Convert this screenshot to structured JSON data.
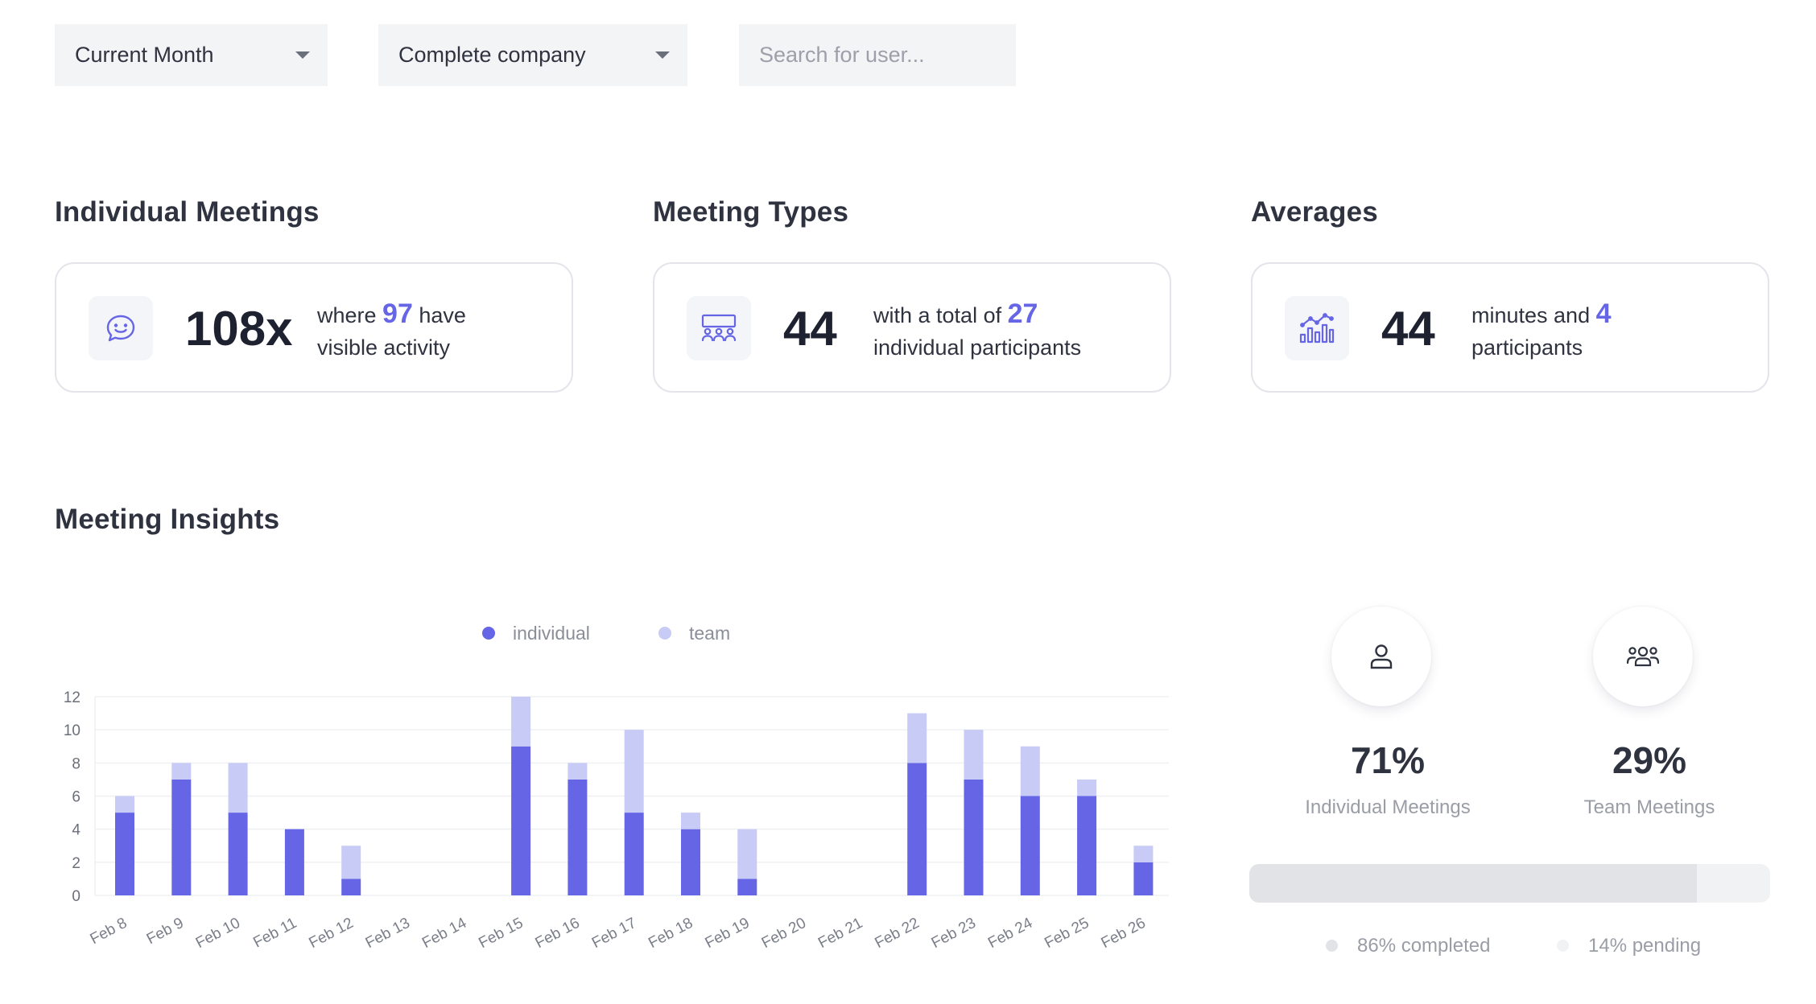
{
  "filters": {
    "period": "Current Month",
    "scope": "Complete company",
    "search_placeholder": "Search for user..."
  },
  "sections": {
    "individual_meetings": {
      "title": "Individual Meetings",
      "icon": "chat-smile-icon",
      "big": "108x",
      "line1_pre": "where ",
      "line1_highlight": "97",
      "line1_post": " have",
      "line2": "visible activity"
    },
    "meeting_types": {
      "title": "Meeting Types",
      "icon": "group-presentation-icon",
      "big": "44",
      "line1_pre": "with a total of ",
      "line1_highlight": "27",
      "line2": "individual participants"
    },
    "averages": {
      "title": "Averages",
      "icon": "chart-analytics-icon",
      "big": "44",
      "line1_pre": "minutes and ",
      "line1_highlight": "4",
      "line2": "participants"
    }
  },
  "insights": {
    "title": "Meeting Insights"
  },
  "colors": {
    "accent": "#6565e6",
    "team": "#c8cbf5",
    "text": "#2f3340"
  },
  "chart_data": {
    "type": "bar",
    "stacked": true,
    "categories": [
      "Feb 8",
      "Feb 9",
      "Feb 10",
      "Feb 11",
      "Feb 12",
      "Feb 13",
      "Feb 14",
      "Feb 15",
      "Feb 16",
      "Feb 17",
      "Feb 18",
      "Feb 19",
      "Feb 20",
      "Feb 21",
      "Feb 22",
      "Feb 23",
      "Feb 24",
      "Feb 25",
      "Feb 26"
    ],
    "series": [
      {
        "name": "individual",
        "color": "#6565e6",
        "values": [
          5,
          7,
          5,
          4,
          1,
          0,
          0,
          9,
          7,
          5,
          4,
          1,
          0,
          0,
          8,
          7,
          6,
          6,
          2
        ]
      },
      {
        "name": "team",
        "color": "#c8cbf5",
        "values": [
          1,
          1,
          3,
          0,
          2,
          0,
          0,
          3,
          1,
          5,
          1,
          3,
          0,
          0,
          3,
          3,
          3,
          1,
          1
        ]
      }
    ],
    "yticks": [
      0,
      2,
      4,
      6,
      8,
      10,
      12
    ],
    "ylim": [
      0,
      12
    ],
    "legend_position": "top-center",
    "grid": true
  },
  "breakdown": {
    "individual": {
      "percent": "71%",
      "label": "Individual Meetings",
      "icon": "user-icon"
    },
    "team": {
      "percent": "29%",
      "label": "Team Meetings",
      "icon": "users-group-icon"
    }
  },
  "progress": {
    "completed_fraction": 0.86,
    "completed_label": "86% completed",
    "pending_label": "14% pending"
  }
}
